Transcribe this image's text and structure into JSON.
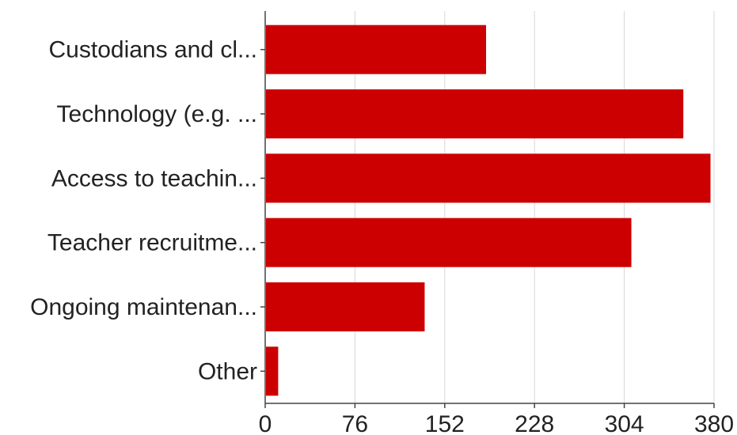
{
  "chart_data": {
    "type": "bar",
    "orientation": "horizontal",
    "title": "",
    "xlabel": "",
    "ylabel": "",
    "categories": [
      "Custodians and cl...",
      "Technology (e.g. ...",
      "Access to teachin...",
      "Teacher recruitme...",
      "Ongoing maintenan...",
      "Other"
    ],
    "values": [
      187,
      354,
      377,
      310,
      135,
      11
    ],
    "xlim": [
      0,
      380
    ],
    "x_ticks": [
      0,
      76,
      152,
      228,
      304,
      380
    ],
    "grid": true,
    "legend": "none",
    "bar_color": "#cc0000"
  }
}
